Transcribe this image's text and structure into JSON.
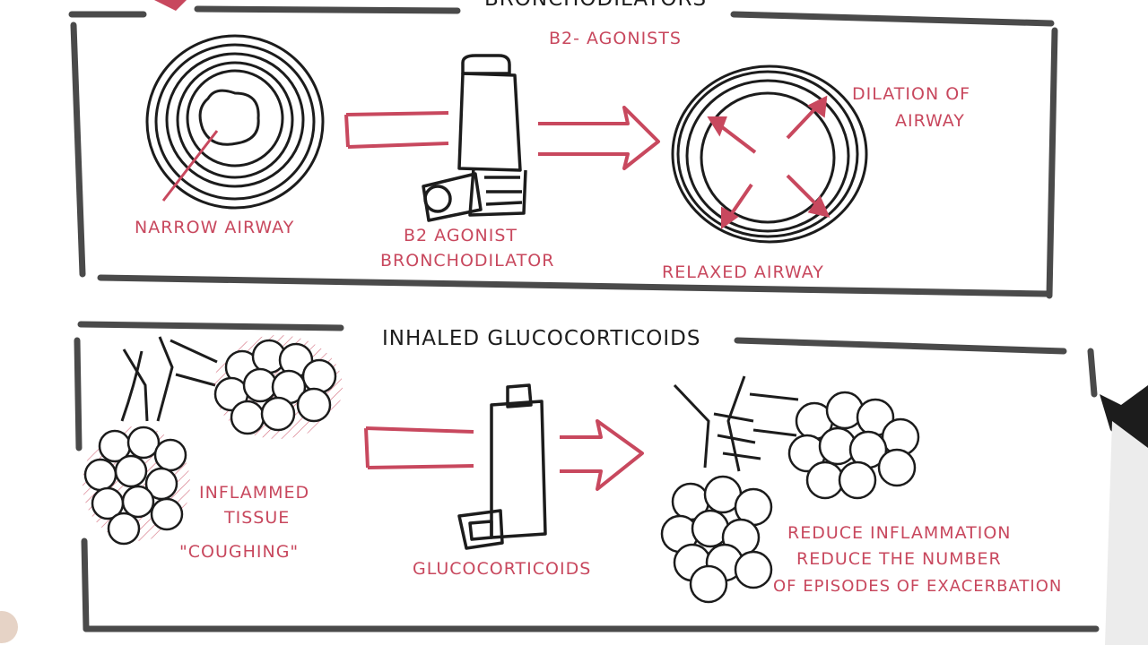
{
  "colors": {
    "ink": "#1c1c1c",
    "frame": "#4a4a4a",
    "accent_red": "#c8485e",
    "background": "#ffffff"
  },
  "top_panel": {
    "title": "BRONCHODILATORS",
    "subtitle": "B2- AGONISTS",
    "left_label": "NARROW AIRWAY",
    "middle_label_line1": "B2 AGONIST",
    "middle_label_line2": "BRONCHODILATOR",
    "right_label": "RELAXED AIRWAY",
    "right_note_line1": "DILATION OF",
    "right_note_line2": "AIRWAY"
  },
  "bottom_panel": {
    "title": "INHALED GLUCOCORTICOIDS",
    "left_label_line1": "INFLAMMED",
    "left_label_line2": "TISSUE",
    "left_label_line3": "\"COUGHING\"",
    "middle_label": "GLUCOCORTICOIDS",
    "right_label_line1": "REDUCE INFLAMMATION",
    "right_label_line2": "REDUCE THE NUMBER",
    "right_label_line3": "OF EPISODES OF EXACERBATION"
  },
  "icons": {
    "inhaler": "inhaler-icon",
    "airway": "airway-cross-section-icon",
    "alveoli": "alveoli-cluster-icon",
    "marker": "marker-pen-icon"
  }
}
